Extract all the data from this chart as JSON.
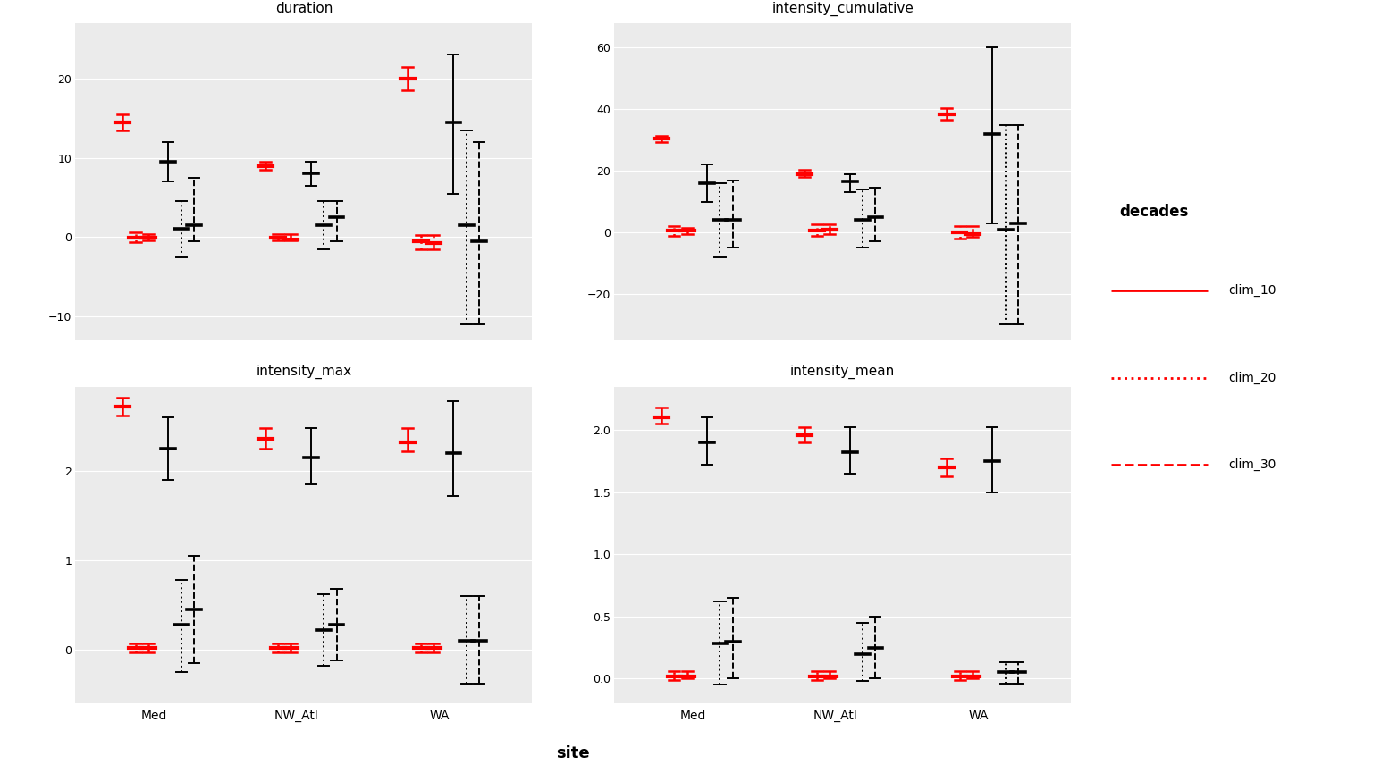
{
  "panels": {
    "duration": {
      "ylim": [
        -13,
        27
      ],
      "yticks": [
        -10,
        0,
        10,
        20
      ],
      "sites": {
        "Med": {
          "clim_10": {
            "red_ci": [
              13.5,
              15.5
            ],
            "red_mid": 14.5,
            "black_ci": [
              7.0,
              12.0
            ],
            "black_mid": 9.5
          },
          "clim_20": {
            "red_ci": [
              -0.6,
              0.6
            ],
            "red_mid": -0.1,
            "black_ci": [
              -2.5,
              4.5
            ],
            "black_mid": 1.0
          },
          "clim_30": {
            "red_ci": [
              -0.4,
              0.4
            ],
            "red_mid": -0.1,
            "black_ci": [
              -0.5,
              7.5
            ],
            "black_mid": 1.5
          }
        },
        "NW_Atl": {
          "clim_10": {
            "red_ci": [
              8.5,
              9.5
            ],
            "red_mid": 9.0,
            "black_ci": [
              6.5,
              9.5
            ],
            "black_mid": 8.0
          },
          "clim_20": {
            "red_ci": [
              -0.4,
              0.4
            ],
            "red_mid": -0.1,
            "black_ci": [
              -1.5,
              4.5
            ],
            "black_mid": 1.5
          },
          "clim_30": {
            "red_ci": [
              -0.4,
              0.4
            ],
            "red_mid": -0.3,
            "black_ci": [
              -0.5,
              4.5
            ],
            "black_mid": 2.5
          }
        },
        "WA": {
          "clim_10": {
            "red_ci": [
              18.5,
              21.5
            ],
            "red_mid": 20.0,
            "black_ci": [
              5.5,
              23.0
            ],
            "black_mid": 14.5
          },
          "clim_20": {
            "red_ci": [
              -1.5,
              0.3
            ],
            "red_mid": -0.5,
            "black_ci": [
              -11.0,
              13.5
            ],
            "black_mid": 1.5
          },
          "clim_30": {
            "red_ci": [
              -1.5,
              0.3
            ],
            "red_mid": -0.7,
            "black_ci": [
              -11.0,
              12.0
            ],
            "black_mid": -0.5
          }
        }
      }
    },
    "intensity_cumulative": {
      "ylim": [
        -35,
        68
      ],
      "yticks": [
        -20,
        0,
        20,
        40,
        60
      ],
      "sites": {
        "Med": {
          "clim_10": {
            "red_ci": [
              29.5,
              31.5
            ],
            "red_mid": 30.5,
            "black_ci": [
              10.0,
              22.0
            ],
            "black_mid": 16.0
          },
          "clim_20": {
            "red_ci": [
              -1.0,
              2.0
            ],
            "red_mid": 0.5,
            "black_ci": [
              -8.0,
              16.0
            ],
            "black_mid": 4.0
          },
          "clim_30": {
            "red_ci": [
              -0.5,
              1.5
            ],
            "red_mid": 0.5,
            "black_ci": [
              -5.0,
              17.0
            ],
            "black_mid": 4.0
          }
        },
        "NW_Atl": {
          "clim_10": {
            "red_ci": [
              18.0,
              20.5
            ],
            "red_mid": 19.0,
            "black_ci": [
              13.0,
              19.0
            ],
            "black_mid": 16.5
          },
          "clim_20": {
            "red_ci": [
              -1.0,
              2.5
            ],
            "red_mid": 0.5,
            "black_ci": [
              -5.0,
              14.0
            ],
            "black_mid": 4.0
          },
          "clim_30": {
            "red_ci": [
              -0.5,
              2.5
            ],
            "red_mid": 1.0,
            "black_ci": [
              -3.0,
              14.5
            ],
            "black_mid": 5.0
          }
        },
        "WA": {
          "clim_10": {
            "red_ci": [
              36.5,
              40.5
            ],
            "red_mid": 38.5,
            "black_ci": [
              3.0,
              60.0
            ],
            "black_mid": 32.0
          },
          "clim_20": {
            "red_ci": [
              -2.0,
              2.0
            ],
            "red_mid": 0.0,
            "black_ci": [
              -30.0,
              35.0
            ],
            "black_mid": 1.0
          },
          "clim_30": {
            "red_ci": [
              -1.5,
              2.0
            ],
            "red_mid": -0.5,
            "black_ci": [
              -30.0,
              35.0
            ],
            "black_mid": 3.0
          }
        }
      }
    },
    "intensity_max": {
      "ylim": [
        -0.6,
        2.95
      ],
      "yticks": [
        0,
        1,
        2
      ],
      "sites": {
        "Med": {
          "clim_10": {
            "red_ci": [
              2.62,
              2.82
            ],
            "red_mid": 2.72,
            "black_ci": [
              1.9,
              2.6
            ],
            "black_mid": 2.25
          },
          "clim_20": {
            "red_ci": [
              -0.03,
              0.07
            ],
            "red_mid": 0.02,
            "black_ci": [
              -0.25,
              0.78
            ],
            "black_mid": 0.28
          },
          "clim_30": {
            "red_ci": [
              -0.03,
              0.07
            ],
            "red_mid": 0.02,
            "black_ci": [
              -0.15,
              1.05
            ],
            "black_mid": 0.45
          }
        },
        "NW_Atl": {
          "clim_10": {
            "red_ci": [
              2.25,
              2.48
            ],
            "red_mid": 2.36,
            "black_ci": [
              1.85,
              2.48
            ],
            "black_mid": 2.15
          },
          "clim_20": {
            "red_ci": [
              -0.03,
              0.07
            ],
            "red_mid": 0.02,
            "black_ci": [
              -0.18,
              0.62
            ],
            "black_mid": 0.22
          },
          "clim_30": {
            "red_ci": [
              -0.03,
              0.07
            ],
            "red_mid": 0.02,
            "black_ci": [
              -0.12,
              0.68
            ],
            "black_mid": 0.28
          }
        },
        "WA": {
          "clim_10": {
            "red_ci": [
              2.22,
              2.48
            ],
            "red_mid": 2.32,
            "black_ci": [
              1.72,
              2.78
            ],
            "black_mid": 2.2
          },
          "clim_20": {
            "red_ci": [
              -0.03,
              0.07
            ],
            "red_mid": 0.02,
            "black_ci": [
              -0.38,
              0.6
            ],
            "black_mid": 0.1
          },
          "clim_30": {
            "red_ci": [
              -0.03,
              0.07
            ],
            "red_mid": 0.02,
            "black_ci": [
              -0.38,
              0.6
            ],
            "black_mid": 0.1
          }
        }
      }
    },
    "intensity_mean": {
      "ylim": [
        -0.2,
        2.35
      ],
      "yticks": [
        0.0,
        0.5,
        1.0,
        1.5,
        2.0
      ],
      "sites": {
        "Med": {
          "clim_10": {
            "red_ci": [
              2.05,
              2.18
            ],
            "red_mid": 2.1,
            "black_ci": [
              1.72,
              2.1
            ],
            "black_mid": 1.9
          },
          "clim_20": {
            "red_ci": [
              -0.01,
              0.06
            ],
            "red_mid": 0.02,
            "black_ci": [
              -0.05,
              0.62
            ],
            "black_mid": 0.28
          },
          "clim_30": {
            "red_ci": [
              0.0,
              0.06
            ],
            "red_mid": 0.02,
            "black_ci": [
              0.0,
              0.65
            ],
            "black_mid": 0.3
          }
        },
        "NW_Atl": {
          "clim_10": {
            "red_ci": [
              1.9,
              2.02
            ],
            "red_mid": 1.96,
            "black_ci": [
              1.65,
              2.02
            ],
            "black_mid": 1.82
          },
          "clim_20": {
            "red_ci": [
              -0.01,
              0.06
            ],
            "red_mid": 0.02,
            "black_ci": [
              -0.02,
              0.45
            ],
            "black_mid": 0.2
          },
          "clim_30": {
            "red_ci": [
              0.0,
              0.06
            ],
            "red_mid": 0.02,
            "black_ci": [
              0.0,
              0.5
            ],
            "black_mid": 0.25
          }
        },
        "WA": {
          "clim_10": {
            "red_ci": [
              1.63,
              1.77
            ],
            "red_mid": 1.7,
            "black_ci": [
              1.5,
              2.02
            ],
            "black_mid": 1.75
          },
          "clim_20": {
            "red_ci": [
              -0.01,
              0.06
            ],
            "red_mid": 0.02,
            "black_ci": [
              -0.04,
              0.13
            ],
            "black_mid": 0.05
          },
          "clim_30": {
            "red_ci": [
              0.0,
              0.06
            ],
            "red_mid": 0.02,
            "black_ci": [
              -0.04,
              0.13
            ],
            "black_mid": 0.05
          }
        }
      }
    }
  },
  "sites": [
    "Med",
    "NW_Atl",
    "WA"
  ],
  "clim_keys": [
    "clim_10",
    "clim_20",
    "clim_30"
  ],
  "red_color": "#FF0000",
  "black_color": "#000000",
  "clim_linestyles": {
    "clim_10": "solid",
    "clim_20": "dotted",
    "clim_30": "dashed"
  },
  "background_color": "#EBEBEB",
  "strip_color": "#D9D9D9",
  "grid_color": "#FFFFFF",
  "panel_order": [
    "duration",
    "intensity_cumulative",
    "intensity_max",
    "intensity_mean"
  ],
  "legend_title": "decades",
  "site_xlabel": "site"
}
